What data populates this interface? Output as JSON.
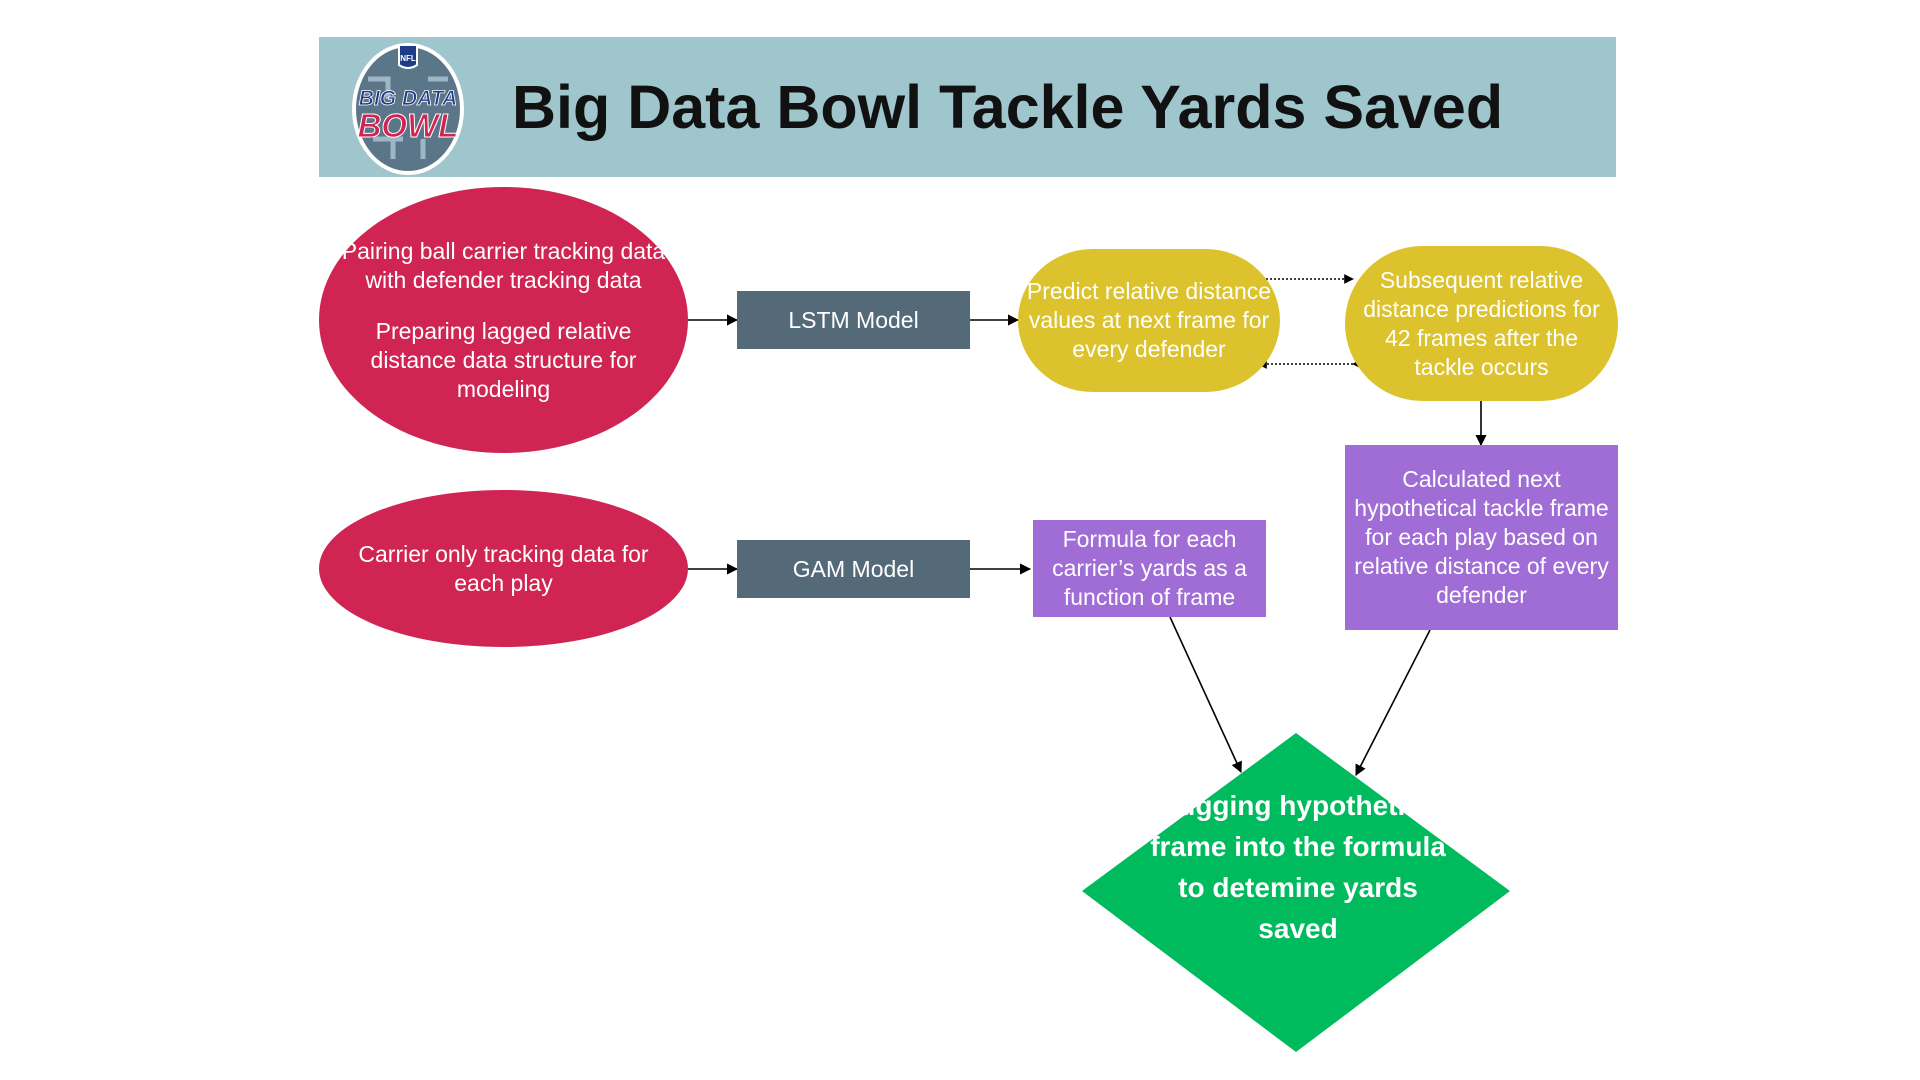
{
  "header": {
    "title": "Big Data Bowl Tackle Yards Saved",
    "logo_text": [
      "NFL",
      "BIG DATA",
      "BOWL"
    ]
  },
  "nodes": {
    "ellipse_top": {
      "para1": "Pairing ball carrier tracking data with defender tracking data",
      "para2": "Preparing lagged relative distance data structure for modeling"
    },
    "ellipse_bottom": "Carrier only tracking data for each play",
    "lstm": "LSTM Model",
    "gam": "GAM Model",
    "predict": "Predict relative distance values at next frame for every defender",
    "subsequent": "Subsequent relative distance predictions for 42 frames after the tackle occurs",
    "calculated": "Calculated next hypothetical tackle frame for each play based on relative distance of every defender",
    "formula": "Formula for each carrier’s yards as a function of frame",
    "diamond": "Plugging hypothetical frame into the formula to detemine yards saved"
  },
  "colors": {
    "header_bg": "#9fc5cd",
    "ellipse": "#d02553",
    "model_box": "#556a79",
    "prediction": "#dcc22c",
    "purple_box": "#a06cd5",
    "diamond": "#00bb5e"
  }
}
